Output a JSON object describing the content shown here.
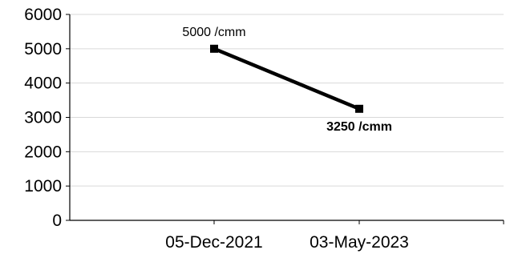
{
  "chart_data": {
    "type": "line",
    "categories": [
      "05-Dec-2021",
      "03-May-2023"
    ],
    "series": [
      {
        "values": [
          5000,
          3250
        ],
        "color": "#000000",
        "marker": "square"
      }
    ],
    "data_labels": [
      {
        "text": "5000 /cmm",
        "bold": false
      },
      {
        "text": "3250 /cmm",
        "bold": true
      }
    ],
    "ylim": [
      0,
      6000
    ],
    "yticks": [
      "0",
      "1000",
      "2000",
      "3000",
      "4000",
      "5000",
      "6000"
    ],
    "grid": true,
    "gridline_color": "#d9d9d9",
    "title": "",
    "xlabel": "",
    "ylabel": ""
  }
}
